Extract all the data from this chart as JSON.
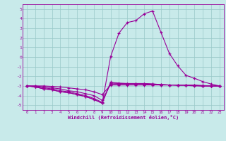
{
  "title": "",
  "xlabel": "Windchill (Refroidissement éolien,°C)",
  "ylabel": "",
  "bg_color": "#c8eaea",
  "grid_color": "#9ac8c8",
  "line_color": "#990099",
  "xlim": [
    -0.5,
    23.5
  ],
  "ylim": [
    -5.5,
    5.5
  ],
  "yticks": [
    -5,
    -4,
    -3,
    -2,
    -1,
    0,
    1,
    2,
    3,
    4,
    5
  ],
  "xticks": [
    0,
    1,
    2,
    3,
    4,
    5,
    6,
    7,
    8,
    9,
    10,
    11,
    12,
    13,
    14,
    15,
    16,
    17,
    18,
    19,
    20,
    21,
    22,
    23
  ],
  "line1_x": [
    0,
    1,
    2,
    3,
    4,
    5,
    6,
    7,
    8,
    9,
    10,
    11,
    12,
    13,
    14,
    15,
    16,
    17,
    18,
    19,
    20,
    21,
    22,
    23
  ],
  "line1_y": [
    -3.0,
    -3.1,
    -3.3,
    -3.4,
    -3.6,
    -3.7,
    -3.9,
    -4.1,
    -4.4,
    -4.8,
    -2.6,
    -2.7,
    -2.75,
    -2.75,
    -2.75,
    -2.8,
    -2.85,
    -2.9,
    -2.9,
    -2.9,
    -2.9,
    -2.95,
    -3.0,
    -3.0
  ],
  "line2_x": [
    0,
    1,
    2,
    3,
    4,
    5,
    6,
    7,
    8,
    9,
    10,
    11,
    12,
    13,
    14,
    15,
    16,
    17,
    18,
    19,
    20,
    21,
    22,
    23
  ],
  "line2_y": [
    -3.0,
    -3.05,
    -3.2,
    -3.3,
    -3.5,
    -3.6,
    -3.8,
    -4.0,
    -4.3,
    -4.7,
    -2.7,
    -2.75,
    -2.75,
    -2.75,
    -2.75,
    -2.8,
    -2.85,
    -2.9,
    -2.9,
    -2.9,
    -2.95,
    -3.0,
    -3.0,
    -3.0
  ],
  "line3_x": [
    0,
    1,
    2,
    3,
    4,
    5,
    6,
    7,
    8,
    9,
    10,
    11,
    12,
    13,
    14,
    15,
    16,
    17,
    18,
    19,
    20,
    21,
    22,
    23
  ],
  "line3_y": [
    -3.0,
    -3.0,
    -3.1,
    -3.2,
    -3.3,
    -3.5,
    -3.6,
    -3.8,
    -4.0,
    -4.5,
    -2.8,
    -2.8,
    -2.8,
    -2.8,
    -2.8,
    -2.85,
    -2.9,
    -2.9,
    -2.9,
    -2.9,
    -2.95,
    -3.0,
    -3.0,
    -3.0
  ],
  "line4_x": [
    0,
    1,
    2,
    3,
    4,
    5,
    6,
    7,
    8,
    9,
    10,
    11,
    12,
    13,
    14,
    15,
    16,
    17,
    18,
    19,
    20,
    21,
    22,
    23
  ],
  "line4_y": [
    -3.0,
    -3.0,
    -3.0,
    -3.05,
    -3.1,
    -3.2,
    -3.3,
    -3.4,
    -3.6,
    -3.9,
    -2.9,
    -2.9,
    -2.9,
    -2.9,
    -2.9,
    -2.9,
    -2.9,
    -2.9,
    -2.95,
    -2.95,
    -3.0,
    -3.0,
    -3.0,
    -3.0
  ],
  "line5_x": [
    0,
    1,
    2,
    3,
    4,
    5,
    6,
    7,
    8,
    9,
    10,
    11,
    12,
    13,
    14,
    15,
    16,
    17,
    18,
    19,
    20,
    21,
    22,
    23
  ],
  "line5_y": [
    -3.0,
    -3.1,
    -3.3,
    -3.4,
    -3.6,
    -3.7,
    -3.9,
    -4.1,
    -4.4,
    -4.8,
    0.05,
    2.5,
    3.6,
    3.8,
    4.5,
    4.8,
    2.6,
    0.4,
    -0.9,
    -1.9,
    -2.2,
    -2.55,
    -2.8,
    -3.0
  ]
}
